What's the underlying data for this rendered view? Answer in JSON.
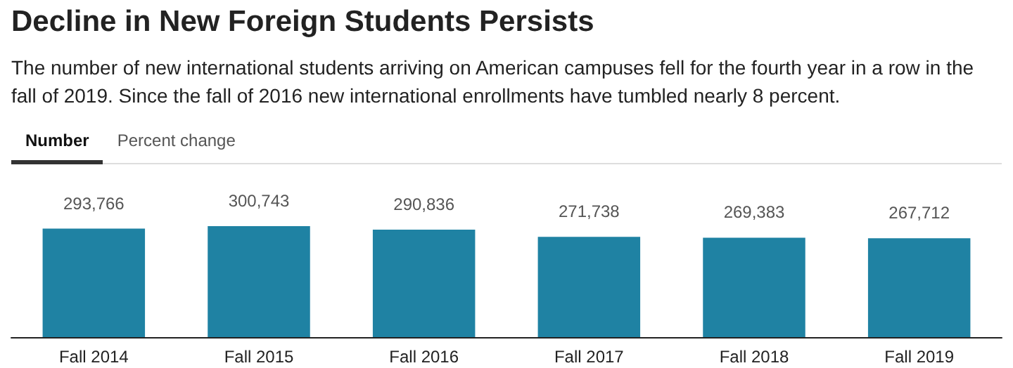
{
  "chart_data": {
    "type": "bar",
    "title": "Decline in New Foreign Students Persists",
    "subtitle": "The number of new international students arriving on American campuses fell for the fourth year in a row in the fall of 2019. Since the fall of 2016 new international enrollments have tumbled nearly 8 percent.",
    "annotations": [
      "Number",
      "Percent change"
    ],
    "categories": [
      "Fall 2014",
      "Fall 2015",
      "Fall 2016",
      "Fall 2017",
      "Fall 2018",
      "Fall 2019"
    ],
    "values": [
      293766,
      300743,
      290836,
      271738,
      269383,
      267712
    ],
    "value_labels": [
      "293,766",
      "300,743",
      "290,836",
      "271,738",
      "269,383",
      "267,712"
    ],
    "color": "#1f82a3",
    "tick_labels": "x"
  }
}
